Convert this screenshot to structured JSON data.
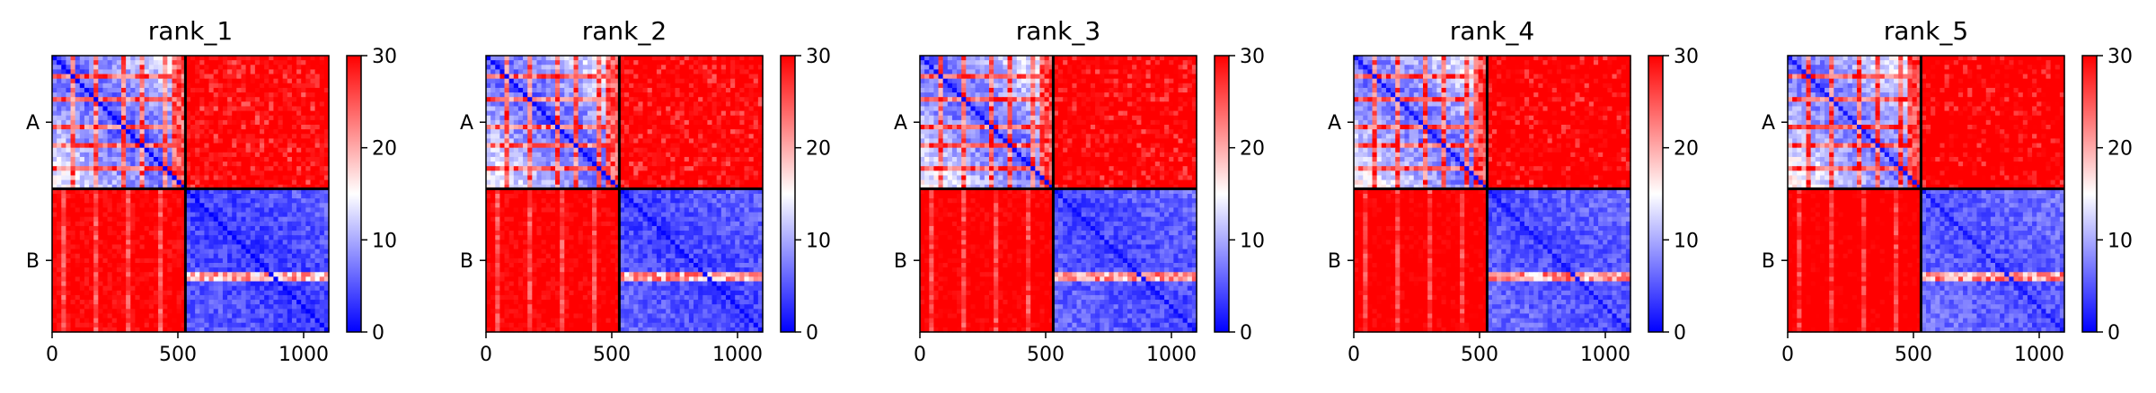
{
  "chart_data": {
    "type": "heatmap",
    "colormap": "bwr",
    "colors": {
      "low": "#0000ff",
      "mid": "#ffffff",
      "high": "#ff0000",
      "divider": "#000000"
    },
    "xlim": [
      0,
      1100
    ],
    "x_ticks": [
      0,
      500,
      1000
    ],
    "chain_boundary": 530,
    "chains": [
      {
        "label": "A",
        "start": 0,
        "end": 530
      },
      {
        "label": "B",
        "start": 530,
        "end": 1100
      }
    ],
    "colorbar": {
      "min": 0,
      "max": 30,
      "ticks": [
        0,
        10,
        20,
        30
      ]
    },
    "panels": [
      {
        "title": "rank_1"
      },
      {
        "title": "rank_2"
      },
      {
        "title": "rank_3"
      },
      {
        "title": "rank_4"
      },
      {
        "title": "rank_5"
      }
    ]
  }
}
